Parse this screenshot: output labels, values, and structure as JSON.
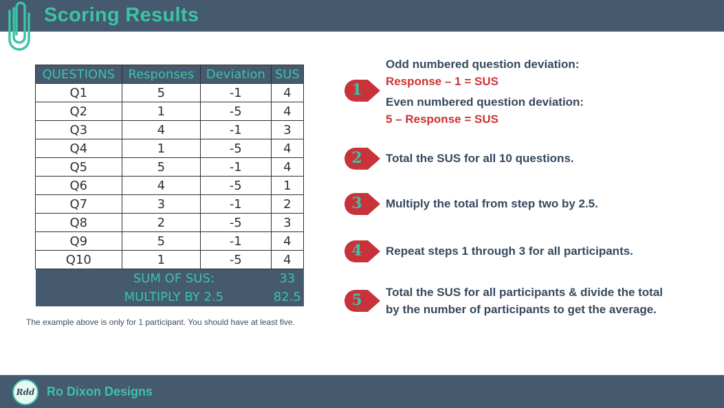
{
  "header": {
    "title": "Scoring Results"
  },
  "table": {
    "columns": [
      "QUESTIONS",
      "Responses",
      "Deviation",
      "SUS"
    ],
    "rows": [
      [
        "Q1",
        "5",
        "-1",
        "4"
      ],
      [
        "Q2",
        "1",
        "-5",
        "4"
      ],
      [
        "Q3",
        "4",
        "-1",
        "3"
      ],
      [
        "Q4",
        "1",
        "-5",
        "4"
      ],
      [
        "Q5",
        "5",
        "-1",
        "4"
      ],
      [
        "Q6",
        "4",
        "-5",
        "1"
      ],
      [
        "Q7",
        "3",
        "-1",
        "2"
      ],
      [
        "Q8",
        "2",
        "-5",
        "3"
      ],
      [
        "Q9",
        "5",
        "-1",
        "4"
      ],
      [
        "Q10",
        "1",
        "-5",
        "4"
      ]
    ],
    "sum_label": "SUM OF SUS:",
    "sum_value": "33",
    "mult_label": "MULTIPLY BY 2.5",
    "mult_value": "82.5"
  },
  "note": "The example above is only for 1 participant. You should have at least five.",
  "steps": [
    {
      "num": "1",
      "line1": "Odd numbered question deviation:",
      "line2": "Response – 1 = SUS",
      "line3": "Even numbered question deviation:",
      "line4": "5 – Response = SUS"
    },
    {
      "num": "2",
      "text": "Total the SUS for all 10 questions."
    },
    {
      "num": "3",
      "text": "Multiply the total from step two by 2.5."
    },
    {
      "num": "4",
      "text": "Repeat steps 1 through 3 for all participants."
    },
    {
      "num": "5",
      "line1": "Total the SUS for all participants & divide the total",
      "line2": "by the number of participants to get the average."
    }
  ],
  "footer": {
    "logo": "Rdd",
    "brand": "Ro Dixon Designs"
  },
  "colors": {
    "bar": "#455a6e",
    "accent": "#3cc3a6",
    "marker": "#c8323a",
    "highlight": "#cc3333"
  }
}
